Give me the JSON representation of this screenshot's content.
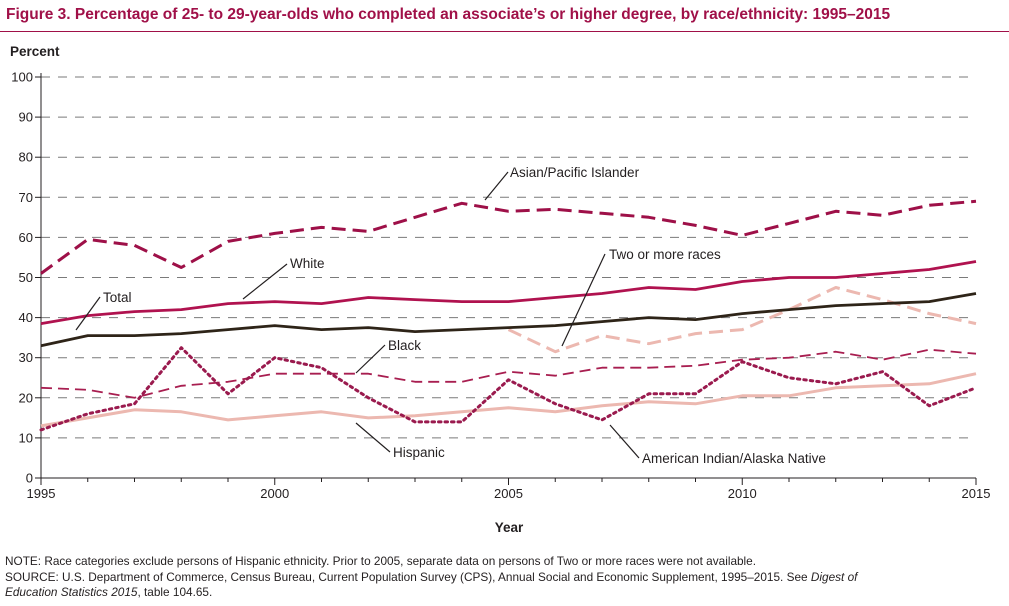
{
  "figure": {
    "title": "Figure 3.   Percentage of 25- to 29-year-olds who completed an associate’s or higher degree, by race/ethnicity: 1995–2015",
    "note": "NOTE: Race categories exclude persons of Hispanic ethnicity. Prior to 2005, separate data on persons of Two or more races were not available.",
    "source_line1": "SOURCE: U.S. Department of Commerce, Census Bureau, Current Population Survey (CPS), Annual Social and Economic Supplement, 1995–2015. See",
    "source_ref1": "Digest of",
    "source_ref2": "Education Statistics 2015",
    "source_tail": ", table 104.65."
  },
  "colors": {
    "accent": "#a01048",
    "total": "#2e2418",
    "asian": "#9e1048",
    "white": "#b0124f",
    "black": "#a81e50",
    "hispanic": "#ecb8b0",
    "aian": "#9a1a4e",
    "two_or_more": "#ecb8b0",
    "grid": "#7a7a7a"
  },
  "chart_data": {
    "type": "line",
    "ylabel": "Percent",
    "xlabel": "Year",
    "ylim": [
      0,
      100
    ],
    "yticks": [
      0,
      10,
      20,
      30,
      40,
      50,
      60,
      70,
      80,
      90,
      100
    ],
    "xlim": [
      1995,
      2015
    ],
    "xticks": [
      1995,
      2000,
      2005,
      2010,
      2015
    ],
    "grid": true,
    "series": [
      {
        "key": "asian",
        "name": "Asian/Pacific Islander",
        "style": "dashed",
        "x": [
          1995,
          1996,
          1997,
          1998,
          1999,
          2000,
          2001,
          2002,
          2003,
          2004,
          2005,
          2006,
          2007,
          2008,
          2009,
          2010,
          2011,
          2012,
          2013,
          2014,
          2015
        ],
        "values": [
          51,
          59.5,
          58,
          52.5,
          59,
          61,
          62.5,
          61.5,
          65,
          68.5,
          66.5,
          67,
          66,
          65,
          63,
          60.5,
          63.5,
          66.5,
          65.5,
          68,
          69
        ]
      },
      {
        "key": "white",
        "name": "White",
        "style": "solid",
        "x": [
          1995,
          1996,
          1997,
          1998,
          1999,
          2000,
          2001,
          2002,
          2003,
          2004,
          2005,
          2006,
          2007,
          2008,
          2009,
          2010,
          2011,
          2012,
          2013,
          2014,
          2015
        ],
        "values": [
          38.5,
          40.5,
          41.5,
          42,
          43.5,
          44,
          43.5,
          45,
          44.5,
          44,
          44,
          45,
          46,
          47.5,
          47,
          49,
          50,
          50,
          51,
          52,
          54
        ]
      },
      {
        "key": "total",
        "name": "Total",
        "style": "solid",
        "x": [
          1995,
          1996,
          1997,
          1998,
          1999,
          2000,
          2001,
          2002,
          2003,
          2004,
          2005,
          2006,
          2007,
          2008,
          2009,
          2010,
          2011,
          2012,
          2013,
          2014,
          2015
        ],
        "values": [
          33,
          35.5,
          35.5,
          36,
          37,
          38,
          37,
          37.5,
          36.5,
          37,
          37.5,
          38,
          39,
          40,
          39.5,
          41,
          42,
          43,
          43.5,
          44,
          46
        ]
      },
      {
        "key": "two_or_more",
        "name": "Two or more races",
        "style": "dashed",
        "x": [
          2005,
          2006,
          2007,
          2008,
          2009,
          2010,
          2011,
          2012,
          2013,
          2014,
          2015
        ],
        "values": [
          37,
          31.5,
          35.5,
          33.5,
          36,
          37,
          42,
          47.5,
          44.5,
          41,
          38.5
        ]
      },
      {
        "key": "black",
        "name": "Black",
        "style": "dashed-thin",
        "x": [
          1995,
          1996,
          1997,
          1998,
          1999,
          2000,
          2001,
          2002,
          2003,
          2004,
          2005,
          2006,
          2007,
          2008,
          2009,
          2010,
          2011,
          2012,
          2013,
          2014,
          2015
        ],
        "values": [
          22.5,
          22,
          20,
          23,
          24,
          26,
          26,
          26,
          24,
          24,
          26.5,
          25.5,
          27.5,
          27.5,
          28,
          29.5,
          30,
          31.5,
          29.5,
          32,
          31
        ]
      },
      {
        "key": "aian",
        "name": "American Indian/Alaska Native",
        "style": "dotted",
        "x": [
          1995,
          1996,
          1997,
          1998,
          1999,
          2000,
          2001,
          2002,
          2003,
          2004,
          2005,
          2006,
          2007,
          2008,
          2009,
          2010,
          2011,
          2012,
          2013,
          2014,
          2015
        ],
        "values": [
          12,
          16,
          18.5,
          32.5,
          21,
          30,
          27.5,
          20,
          14,
          14,
          24.5,
          18.5,
          14.5,
          21,
          21,
          29,
          25,
          23.5,
          26.5,
          18,
          22.5
        ]
      },
      {
        "key": "hispanic",
        "name": "Hispanic",
        "style": "solid-light",
        "x": [
          1995,
          1996,
          1997,
          1998,
          1999,
          2000,
          2001,
          2002,
          2003,
          2004,
          2005,
          2006,
          2007,
          2008,
          2009,
          2010,
          2011,
          2012,
          2013,
          2014,
          2015
        ],
        "values": [
          13,
          15,
          17,
          16.5,
          14.5,
          15.5,
          16.5,
          15,
          15.5,
          16.5,
          17.5,
          16.5,
          18,
          19,
          18.5,
          20.5,
          20.5,
          22.5,
          23,
          23.5,
          26
        ]
      }
    ],
    "labels": {
      "asian": "Asian/Pacific Islander",
      "two_or_more": "Two or more races",
      "white": "White",
      "total": "Total",
      "black": "Black",
      "hispanic": "Hispanic",
      "aian": "American Indian/Alaska Native"
    }
  }
}
